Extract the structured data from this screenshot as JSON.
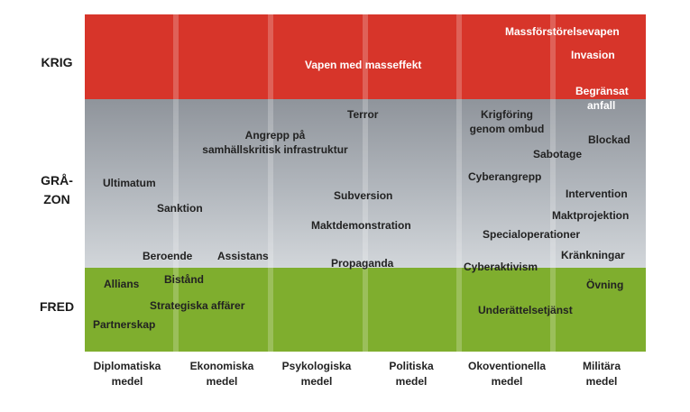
{
  "zones": {
    "krig": "KRIG",
    "gra_line1": "GRÅ-",
    "gra_line2": "ZON",
    "fred": "FRED"
  },
  "categories": [
    {
      "line1": "Diplomatiska",
      "line2": "medel"
    },
    {
      "line1": "Ekonomiska",
      "line2": "medel"
    },
    {
      "line1": "Psykologiska",
      "line2": "medel"
    },
    {
      "line1": "Politiska",
      "line2": "medel"
    },
    {
      "line1": "Okoventionella",
      "line2": "medel"
    },
    {
      "line1": "Militära",
      "line2": "medel"
    }
  ],
  "terms": {
    "massforstorelsevapen": "Massförstörelsevapen",
    "invasion": "Invasion",
    "vapen_masseffekt": "Vapen med masseffekt",
    "begransat_1": "Begränsat",
    "begransat_2": "anfall",
    "terror": "Terror",
    "angrepp_1": "Angrepp på",
    "angrepp_2": "samhällskritisk infrastruktur",
    "krigforing_1": "Krigföring",
    "krigforing_2": "genom ombud",
    "blockad": "Blockad",
    "sabotage": "Sabotage",
    "ultimatum": "Ultimatum",
    "cyberangrepp": "Cyberangrepp",
    "subversion": "Subversion",
    "intervention": "Intervention",
    "sanktion": "Sanktion",
    "maktprojektion": "Maktprojektion",
    "maktdemonstration": "Maktdemonstration",
    "specialoperationer": "Specialoperationer",
    "beroende": "Beroende",
    "assistans": "Assistans",
    "krankningar": "Kränkningar",
    "propaganda": "Propaganda",
    "cyberaktivism": "Cyberaktivism",
    "bistand": "Bistånd",
    "allians": "Allians",
    "ovning": "Övning",
    "strategiska_affarer": "Strategiska affärer",
    "underrattelsetjanst": "Underättelsetjänst",
    "partnerskap": "Partnerskap"
  },
  "colors": {
    "krig": "#d7352a",
    "gra_top": "#8f949b",
    "gra_bottom": "#d2d6da",
    "fred": "#7fae2e"
  }
}
